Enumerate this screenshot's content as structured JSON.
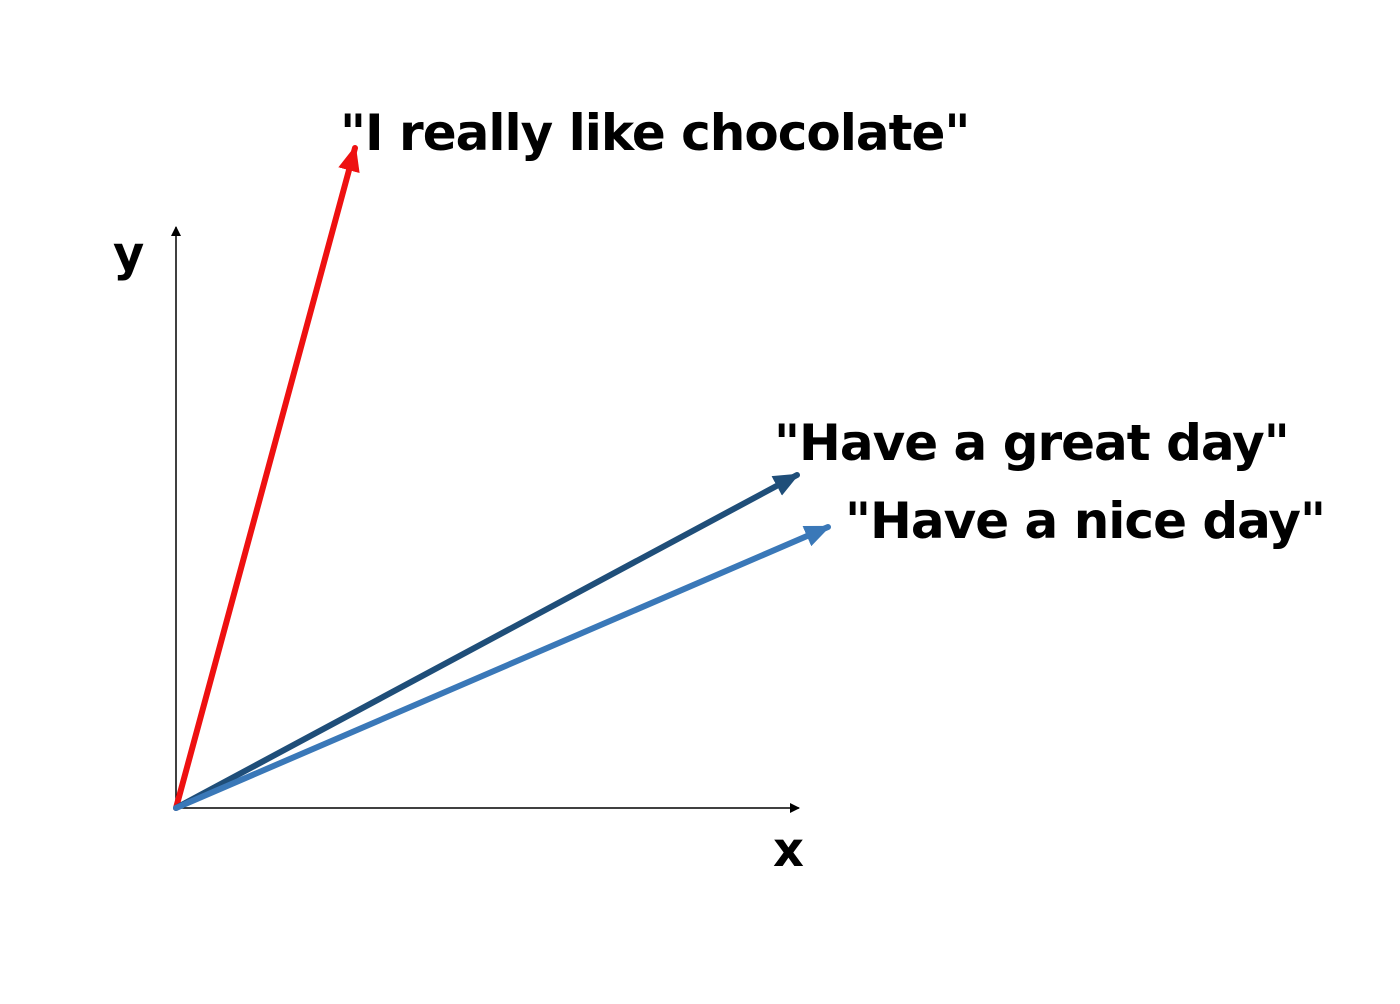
{
  "axes": {
    "x_label": "x",
    "y_label": "y"
  },
  "vectors": [
    {
      "label": "\"I really like chocolate\"",
      "color": "#ee1111"
    },
    {
      "label": "\"Have a great day\"",
      "color": "#1f4e79"
    },
    {
      "label": "\"Have a nice day\"",
      "color": "#3a78b8"
    }
  ]
}
